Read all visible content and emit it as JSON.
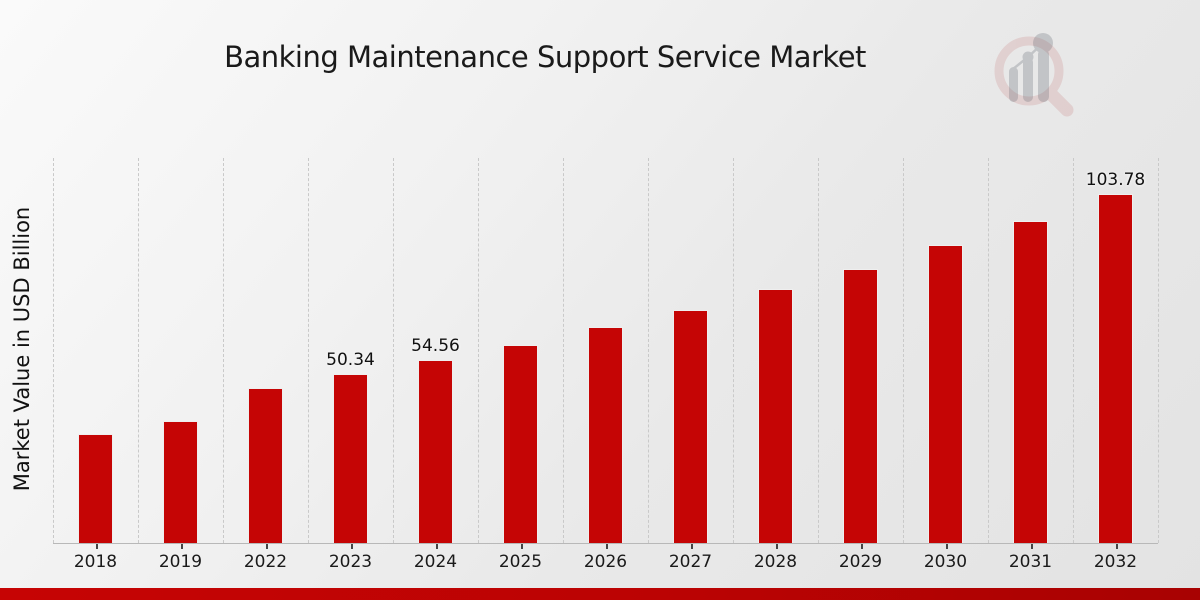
{
  "page": {
    "title": "Banking Maintenance Support Service Market"
  },
  "chart_data": {
    "type": "bar",
    "title": "Banking Maintenance Support Service Market",
    "xlabel": "",
    "ylabel": "Market Value in USD Billion",
    "categories": [
      "2018",
      "2019",
      "2022",
      "2023",
      "2024",
      "2025",
      "2026",
      "2027",
      "2028",
      "2029",
      "2030",
      "2031",
      "2032"
    ],
    "values": [
      32.3,
      36.4,
      46.2,
      50.34,
      54.56,
      59.0,
      64.1,
      69.4,
      75.4,
      81.5,
      88.5,
      95.8,
      103.78
    ],
    "data_labels": [
      "",
      "",
      "",
      "50.34",
      "54.56",
      "",
      "",
      "",
      "",
      "",
      "",
      "",
      "103.78"
    ],
    "ylim": [
      0,
      114.8
    ],
    "grid": "vertical-dashed",
    "legend_position": "none",
    "bar_color": "#c50505",
    "gridline_color": "#c9c9c9",
    "axis_color": "#b8b8b8"
  },
  "branding": {
    "watermark_icon": "magnifier-bar-chart-logo",
    "footer_band_color": "#bb0303",
    "ring_color": "#c97a7a",
    "bars_color": "#8f949c"
  }
}
